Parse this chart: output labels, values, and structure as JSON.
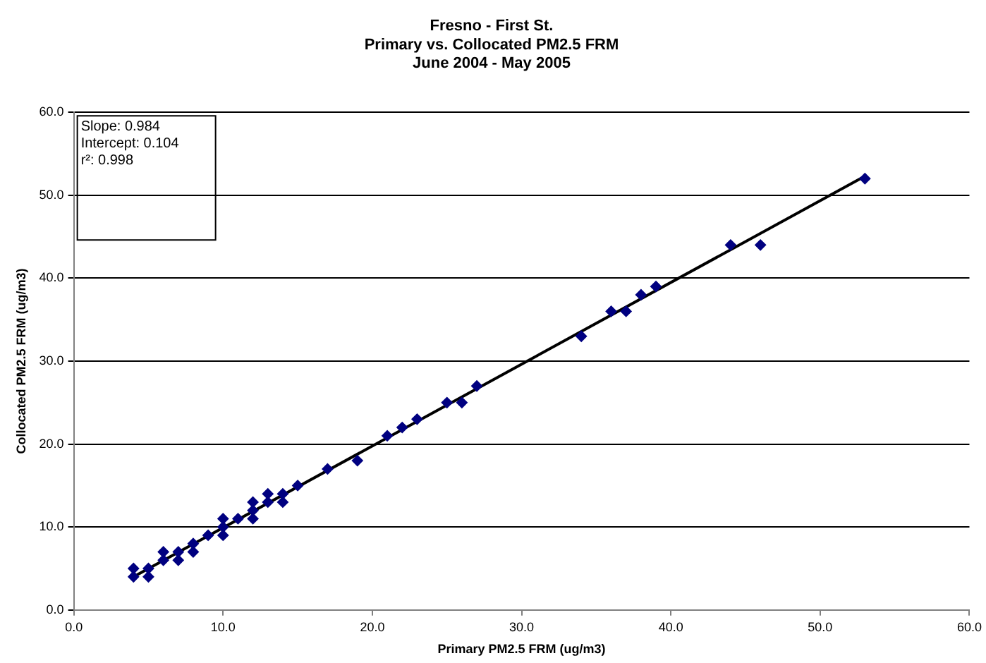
{
  "chart_data": {
    "type": "scatter",
    "title": "Fresno - First St.\nPrimary vs. Collocated PM2.5 FRM\nJune 2004 - May 2005",
    "xlabel": "Primary PM2.5 FRM (ug/m3)",
    "ylabel": "Collocated PM2.5 FRM (ug/m3)",
    "xlim": [
      0,
      60
    ],
    "ylim": [
      0,
      60
    ],
    "xticks": [
      {
        "value": 0,
        "label": "0.0"
      },
      {
        "value": 10,
        "label": "10.0"
      },
      {
        "value": 20,
        "label": "20.0"
      },
      {
        "value": 30,
        "label": "30.0"
      },
      {
        "value": 40,
        "label": "40.0"
      },
      {
        "value": 50,
        "label": "50.0"
      },
      {
        "value": 60,
        "label": "60.0"
      }
    ],
    "yticks": [
      {
        "value": 0,
        "label": "0.0"
      },
      {
        "value": 10,
        "label": "10.0"
      },
      {
        "value": 20,
        "label": "20.0"
      },
      {
        "value": 30,
        "label": "30.0"
      },
      {
        "value": 40,
        "label": "40.0"
      },
      {
        "value": 50,
        "label": "50.0"
      },
      {
        "value": 60,
        "label": "60.0"
      }
    ],
    "grid": "y",
    "legend": false,
    "marker": "diamond",
    "annotations": [
      "Slope: 0.984\nIntercept: 0.104\nr²: 0.998"
    ],
    "series": [
      {
        "color": "#000080",
        "x": [
          4,
          4,
          5,
          5,
          6,
          6,
          7,
          7,
          8,
          8,
          9,
          10,
          10,
          10,
          11,
          12,
          12,
          12,
          13,
          13,
          14,
          14,
          15,
          17,
          19,
          21,
          22,
          23,
          25,
          26,
          27,
          34,
          36,
          37,
          38,
          39,
          44,
          46,
          53
        ],
        "values": [
          4,
          5,
          4,
          5,
          6,
          7,
          6,
          7,
          7,
          8,
          9,
          9,
          10,
          11,
          11,
          11,
          12,
          13,
          13,
          14,
          13,
          14,
          15,
          17,
          18,
          21,
          22,
          23,
          25,
          25,
          27,
          33,
          36,
          36,
          38,
          39,
          44,
          44,
          52
        ]
      },
      {
        "type": "line",
        "color": "#000000",
        "marker": "none",
        "line_style": "solid",
        "x": [
          4,
          53
        ],
        "values": [
          4.0,
          52.3
        ]
      }
    ]
  }
}
